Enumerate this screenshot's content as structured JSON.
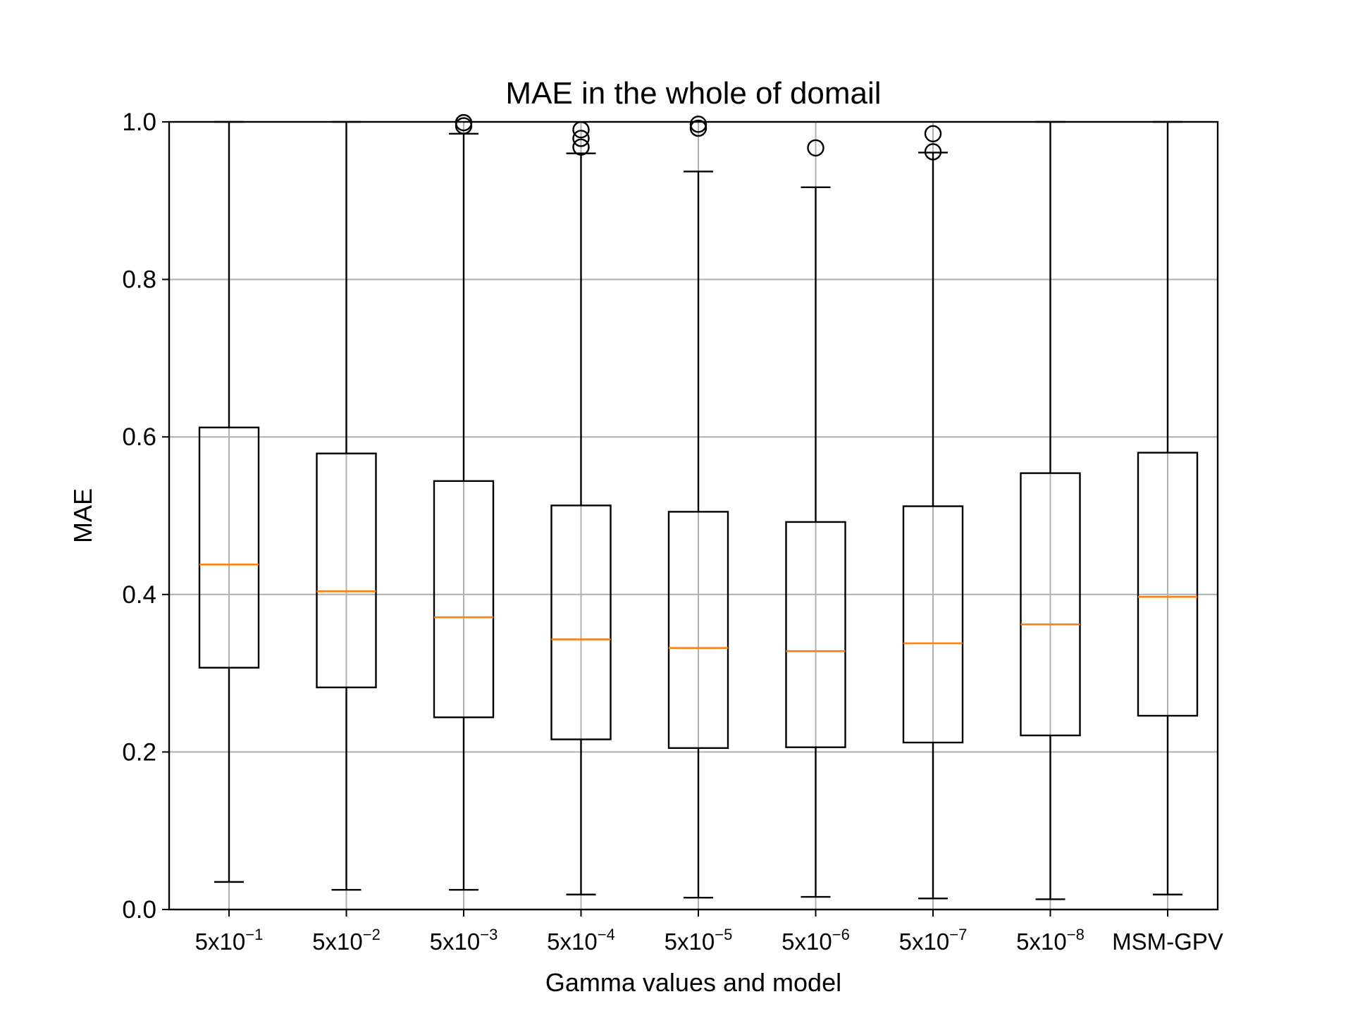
{
  "chart_data": {
    "type": "box",
    "title": "MAE in the whole of domail",
    "xlabel": "Gamma values and model",
    "ylabel": "MAE",
    "ylim": [
      0.0,
      1.0
    ],
    "yticks": [
      "0.0",
      "0.2",
      "0.4",
      "0.6",
      "0.8",
      "1.0"
    ],
    "grid": true,
    "colors": {
      "box": "#000000",
      "median": "#ff7f0e",
      "grid": "#b0b0b0"
    },
    "categories": [
      {
        "base": "5x10",
        "exp": "−1"
      },
      {
        "base": "5x10",
        "exp": "−2"
      },
      {
        "base": "5x10",
        "exp": "−3"
      },
      {
        "base": "5x10",
        "exp": "−4"
      },
      {
        "base": "5x10",
        "exp": "−5"
      },
      {
        "base": "5x10",
        "exp": "−6"
      },
      {
        "base": "5x10",
        "exp": "−7"
      },
      {
        "base": "5x10",
        "exp": "−8"
      },
      {
        "base": "MSM-GPV",
        "exp": ""
      }
    ],
    "boxes": [
      {
        "whisker_low": 0.035,
        "q1": 0.307,
        "median": 0.438,
        "q3": 0.612,
        "whisker_high": 1.0,
        "outliers": []
      },
      {
        "whisker_low": 0.025,
        "q1": 0.282,
        "median": 0.404,
        "q3": 0.579,
        "whisker_high": 1.0,
        "outliers": []
      },
      {
        "whisker_low": 0.025,
        "q1": 0.244,
        "median": 0.371,
        "q3": 0.544,
        "whisker_high": 0.985,
        "outliers": [
          0.995,
          0.999
        ]
      },
      {
        "whisker_low": 0.019,
        "q1": 0.216,
        "median": 0.343,
        "q3": 0.513,
        "whisker_high": 0.96,
        "outliers": [
          0.968,
          0.979,
          0.99
        ]
      },
      {
        "whisker_low": 0.015,
        "q1": 0.205,
        "median": 0.332,
        "q3": 0.505,
        "whisker_high": 0.937,
        "outliers": [
          0.992,
          0.997
        ]
      },
      {
        "whisker_low": 0.016,
        "q1": 0.206,
        "median": 0.328,
        "q3": 0.492,
        "whisker_high": 0.917,
        "outliers": [
          0.967
        ]
      },
      {
        "whisker_low": 0.014,
        "q1": 0.212,
        "median": 0.338,
        "q3": 0.512,
        "whisker_high": 0.961,
        "outliers": [
          0.962,
          0.985
        ]
      },
      {
        "whisker_low": 0.013,
        "q1": 0.221,
        "median": 0.362,
        "q3": 0.554,
        "whisker_high": 1.0,
        "outliers": []
      },
      {
        "whisker_low": 0.019,
        "q1": 0.246,
        "median": 0.397,
        "q3": 0.58,
        "whisker_high": 1.0,
        "outliers": []
      }
    ]
  }
}
